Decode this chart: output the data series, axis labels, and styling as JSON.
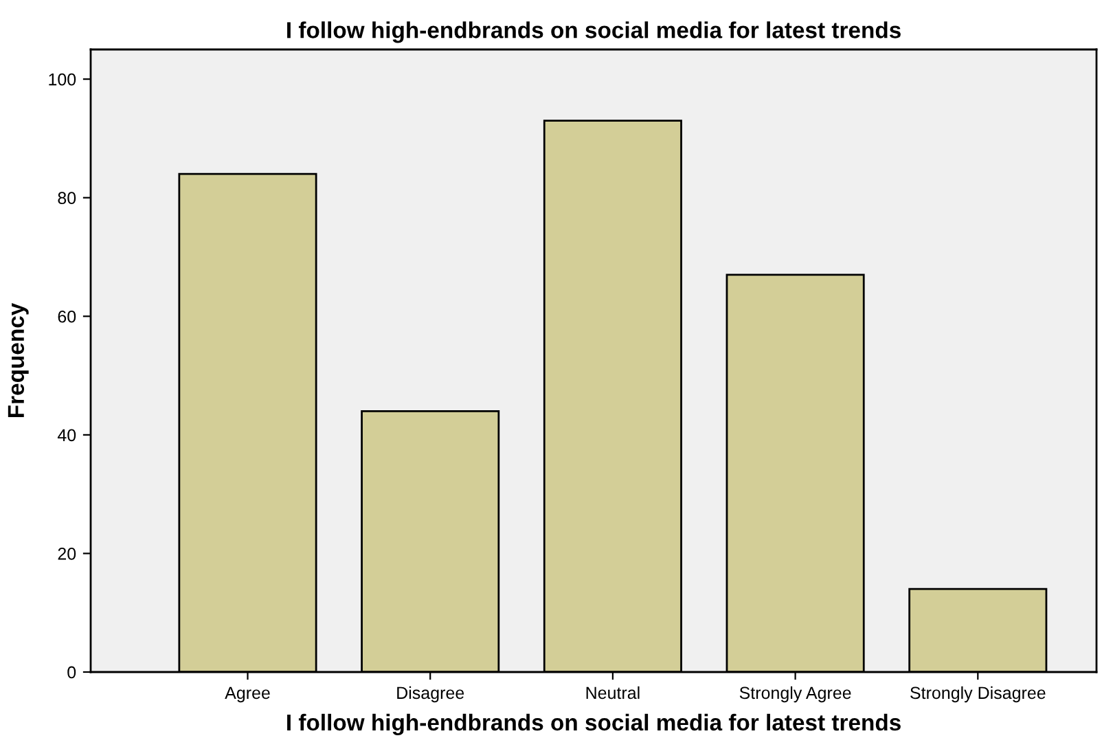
{
  "chart_data": {
    "type": "bar",
    "title": "I follow high-endbrands on social media for latest trends",
    "xlabel": "I follow high-endbrands on social media for latest trends",
    "ylabel": "Frequency",
    "categories": [
      "Agree",
      "Disagree",
      "Neutral",
      "Strongly Agree",
      "Strongly Disagree"
    ],
    "values": [
      84,
      44,
      93,
      67,
      14
    ],
    "color": "#d3ce97",
    "ylim": [
      0,
      105
    ],
    "yticks": [
      0,
      20,
      40,
      60,
      80,
      100
    ],
    "grid": false,
    "legend": false
  }
}
